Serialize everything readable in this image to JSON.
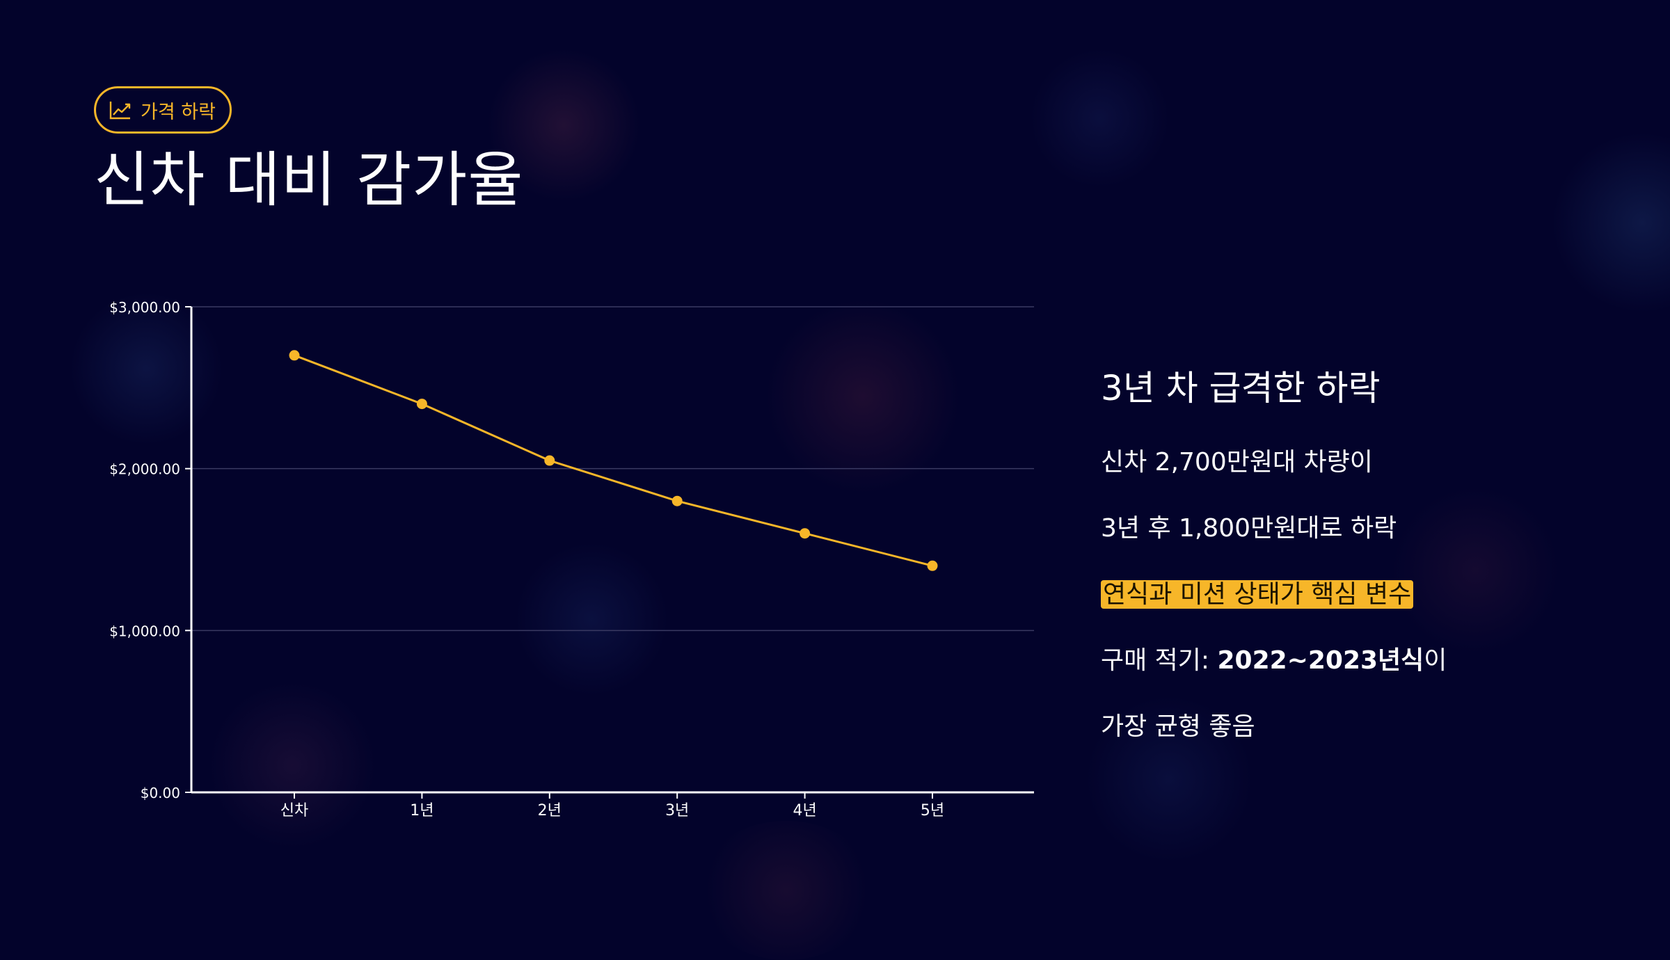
{
  "badge": {
    "label": "가격 하락",
    "icon": "trending-up-icon"
  },
  "title": "신차 대비 감가율",
  "colors": {
    "background": "#03032b",
    "accent": "#f7b629",
    "axis": "#ffffff",
    "grid": "#3a3a62",
    "text": "#ffffff"
  },
  "chart_data": {
    "type": "line",
    "categories": [
      "신차",
      "1년",
      "2년",
      "3년",
      "4년",
      "5년"
    ],
    "series": [
      {
        "values": [
          2700,
          2400,
          2050,
          1800,
          1600,
          1400
        ]
      }
    ],
    "yticks": [
      "$0.00",
      "$1,000.00",
      "$2,000.00",
      "$3,000.00"
    ],
    "ytick_values": [
      0,
      1000,
      2000,
      3000
    ],
    "ylim": [
      0,
      3000
    ],
    "grid": true,
    "legend": false
  },
  "side": {
    "heading": "3년 차 급격한 하락",
    "line1": "신차 2,700만원대 차량이",
    "line2": "3년 후 1,800만원대로 하락",
    "line3": "연식과 미션 상태가 핵심 변수",
    "line4_prefix": "구매 적기: ",
    "line4_bold": "2022~2023년식",
    "line4_suffix": "이",
    "line5": "가장 균형 좋음"
  }
}
